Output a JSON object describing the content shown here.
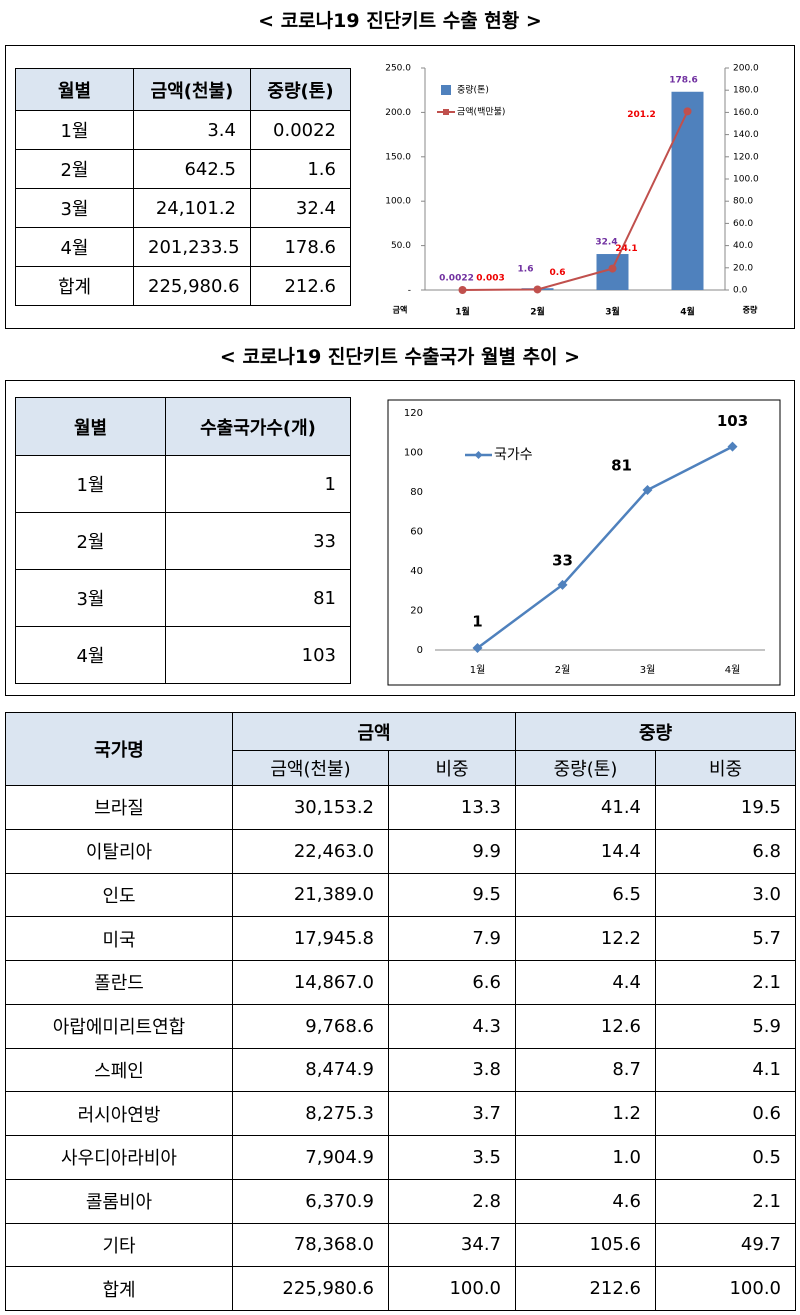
{
  "title1": "< 코로나19 진단키트 수출 현황 >",
  "table1": {
    "header": [
      "월별",
      "금액(천불)",
      "중량(톤)"
    ],
    "rows": [
      [
        "1월",
        "3.4",
        "0.0022"
      ],
      [
        "2월",
        "642.5",
        "1.6"
      ],
      [
        "3월",
        "24,101.2",
        "32.4"
      ],
      [
        "4월",
        "201,233.5",
        "178.6"
      ],
      [
        "합계",
        "225,980.6",
        "212.6"
      ]
    ]
  },
  "title2": "< 코로나19 진단키트 수출국가 월별 추이 >",
  "table2": {
    "header": [
      "월별",
      "수출국가수(개)"
    ],
    "rows": [
      [
        "1월",
        "1"
      ],
      [
        "2월",
        "33"
      ],
      [
        "3월",
        "81"
      ],
      [
        "4월",
        "103"
      ]
    ]
  },
  "chart_data": [
    {
      "type": "combo",
      "categories": [
        "1월",
        "2월",
        "3월",
        "4월"
      ],
      "series": [
        {
          "name": "중량(톤)",
          "type": "bar",
          "color": "#4f81bd",
          "axis": "y2",
          "values": [
            0.0022,
            1.6,
            32.4,
            178.6
          ]
        },
        {
          "name": "금액(백만불)",
          "type": "line",
          "color": "#c0504d",
          "values": [
            0.003,
            0.6,
            24.1,
            201.2
          ]
        }
      ],
      "ylabel": "금액",
      "y2label": "중량",
      "ylim": [
        0,
        250
      ],
      "yticks": [
        {
          "value": 0,
          "label": "-"
        },
        {
          "value": 50,
          "label": "50.0"
        },
        {
          "value": 100,
          "label": "100.0"
        },
        {
          "value": 150,
          "label": "150.0"
        },
        {
          "value": 200,
          "label": "200.0"
        },
        {
          "value": 250,
          "label": "250.0"
        }
      ],
      "y2lim": [
        0,
        200
      ],
      "y2ticks": [
        {
          "value": 0,
          "label": "0.0"
        },
        {
          "value": 20,
          "label": "20.0"
        },
        {
          "value": 40,
          "label": "40.0"
        },
        {
          "value": 60,
          "label": "60.0"
        },
        {
          "value": 80,
          "label": "80.0"
        },
        {
          "value": 100,
          "label": "100.0"
        },
        {
          "value": 120,
          "label": "120.0"
        },
        {
          "value": 140,
          "label": "140.0"
        },
        {
          "value": 160,
          "label": "160.0"
        },
        {
          "value": 180,
          "label": "180.0"
        },
        {
          "value": 200,
          "label": "200.0"
        }
      ],
      "bar_label_color": "#7030a0",
      "grid": false
    },
    {
      "type": "line",
      "categories": [
        "1월",
        "2월",
        "3월",
        "4월"
      ],
      "series": [
        {
          "name": "국가수",
          "color": "#4f81bd",
          "values": [
            1,
            33,
            81,
            103
          ]
        }
      ],
      "ylim": [
        0,
        120
      ],
      "yticks": [
        0,
        20,
        40,
        60,
        80,
        100,
        120
      ],
      "grid": false
    }
  ],
  "table3": {
    "groups": [
      "국가명",
      "금액",
      "중량"
    ],
    "subheader": [
      "금액(천불)",
      "비중",
      "중량(톤)",
      "비중"
    ],
    "rows": [
      [
        "브라질",
        "30,153.2",
        "13.3",
        "41.4",
        "19.5"
      ],
      [
        "이탈리아",
        "22,463.0",
        "9.9",
        "14.4",
        "6.8"
      ],
      [
        "인도",
        "21,389.0",
        "9.5",
        "6.5",
        "3.0"
      ],
      [
        "미국",
        "17,945.8",
        "7.9",
        "12.2",
        "5.7"
      ],
      [
        "폴란드",
        "14,867.0",
        "6.6",
        "4.4",
        "2.1"
      ],
      [
        "아랍에미리트연합",
        "9,768.6",
        "4.3",
        "12.6",
        "5.9"
      ],
      [
        "스페인",
        "8,474.9",
        "3.8",
        "8.7",
        "4.1"
      ],
      [
        "러시아연방",
        "8,275.3",
        "3.7",
        "1.2",
        "0.6"
      ],
      [
        "사우디아라비아",
        "7,904.9",
        "3.5",
        "1.0",
        "0.5"
      ],
      [
        "콜롬비아",
        "6,370.9",
        "2.8",
        "4.6",
        "2.1"
      ],
      [
        "기타",
        "78,368.0",
        "34.7",
        "105.6",
        "49.7"
      ],
      [
        "합계",
        "225,980.6",
        "100.0",
        "212.6",
        "100.0"
      ]
    ]
  }
}
